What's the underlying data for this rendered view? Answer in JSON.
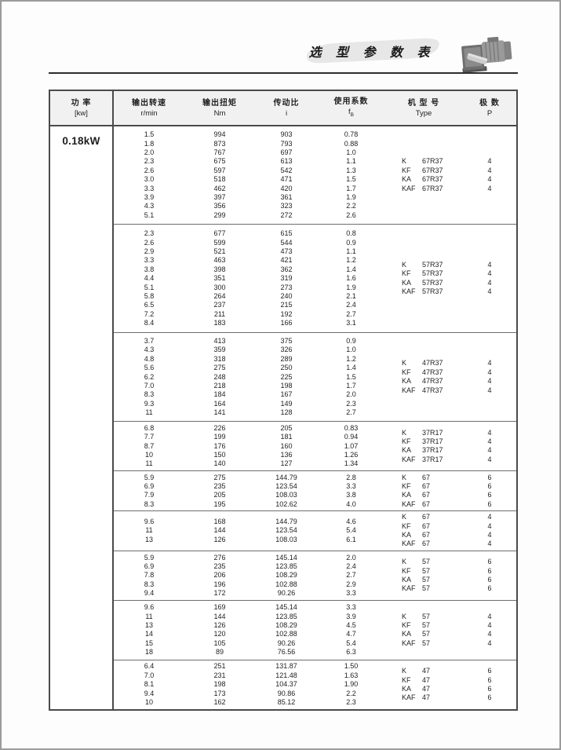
{
  "page": {
    "title": "选 型 参 数 表",
    "power_label": "0.18kW"
  },
  "header": {
    "power": {
      "zh": "功  率",
      "unit": "[kw]"
    },
    "speed": {
      "zh": "输出转速",
      "unit": "r/min"
    },
    "torque": {
      "zh": "输出扭矩",
      "unit": "Nm"
    },
    "ratio": {
      "zh": "传动比",
      "unit": "i"
    },
    "factor": {
      "zh": "使用系数",
      "unit_main": "f",
      "unit_sub": "B"
    },
    "type": {
      "zh": "机 型 号",
      "unit": "Type"
    },
    "poles": {
      "zh": "极  数",
      "unit": "P"
    }
  },
  "icons": {
    "gearmotor": "gearmotor-photo"
  },
  "colors": {
    "table_border": "#4a4a4a",
    "block_separator": "#6e6e6e",
    "header_bg": "#f1f1f1",
    "banner_bg": "#e7e7e7",
    "rule": "#2e2e2e"
  },
  "blocks": [
    {
      "rows": [
        [
          "1.5",
          "994",
          "903",
          "0.78"
        ],
        [
          "1.8",
          "873",
          "793",
          "0.88"
        ],
        [
          "2.0",
          "767",
          "697",
          "1.0"
        ],
        [
          "2.3",
          "675",
          "613",
          "1.1"
        ],
        [
          "2.6",
          "597",
          "542",
          "1.3"
        ],
        [
          "3.0",
          "518",
          "471",
          "1.5"
        ],
        [
          "3.3",
          "462",
          "420",
          "1.7"
        ],
        [
          "3.9",
          "397",
          "361",
          "1.9"
        ],
        [
          "4.3",
          "356",
          "323",
          "2.2"
        ],
        [
          "5.1",
          "299",
          "272",
          "2.6"
        ]
      ],
      "types": [
        {
          "series": "K",
          "code": "67R37"
        },
        {
          "series": "KF",
          "code": "67R37"
        },
        {
          "series": "KA",
          "code": "67R37"
        },
        {
          "series": "KAF",
          "code": "67R37"
        }
      ],
      "poles": "4"
    },
    {
      "rows": [
        [
          "2.3",
          "677",
          "615",
          "0.8"
        ],
        [
          "2.6",
          "599",
          "544",
          "0.9"
        ],
        [
          "2.9",
          "521",
          "473",
          "1.1"
        ],
        [
          "3.3",
          "463",
          "421",
          "1.2"
        ],
        [
          "3.8",
          "398",
          "362",
          "1.4"
        ],
        [
          "4.4",
          "351",
          "319",
          "1.6"
        ],
        [
          "5.1",
          "300",
          "273",
          "1.9"
        ],
        [
          "5.8",
          "264",
          "240",
          "2.1"
        ],
        [
          "6.5",
          "237",
          "215",
          "2.4"
        ],
        [
          "7.2",
          "211",
          "192",
          "2.7"
        ],
        [
          "8.4",
          "183",
          "166",
          "3.1"
        ]
      ],
      "types": [
        {
          "series": "K",
          "code": "57R37"
        },
        {
          "series": "KF",
          "code": "57R37"
        },
        {
          "series": "KA",
          "code": "57R37"
        },
        {
          "series": "KAF",
          "code": "57R37"
        }
      ],
      "poles": "4"
    },
    {
      "rows": [
        [
          "3.7",
          "413",
          "375",
          "0.9"
        ],
        [
          "4.3",
          "359",
          "326",
          "1.0"
        ],
        [
          "4.8",
          "318",
          "289",
          "1.2"
        ],
        [
          "5.6",
          "275",
          "250",
          "1.4"
        ],
        [
          "6.2",
          "248",
          "225",
          "1.5"
        ],
        [
          "7.0",
          "218",
          "198",
          "1.7"
        ],
        [
          "8.3",
          "184",
          "167",
          "2.0"
        ],
        [
          "9.3",
          "164",
          "149",
          "2.3"
        ],
        [
          "11",
          "141",
          "128",
          "2.7"
        ]
      ],
      "types": [
        {
          "series": "K",
          "code": "47R37"
        },
        {
          "series": "KF",
          "code": "47R37"
        },
        {
          "series": "KA",
          "code": "47R37"
        },
        {
          "series": "KAF",
          "code": "47R37"
        }
      ],
      "poles": "4"
    },
    {
      "rows": [
        [
          "6.8",
          "226",
          "205",
          "0.83"
        ],
        [
          "7.7",
          "199",
          "181",
          "0.94"
        ],
        [
          "8.7",
          "176",
          "160",
          "1.07"
        ],
        [
          "10",
          "150",
          "136",
          "1.26"
        ],
        [
          "11",
          "140",
          "127",
          "1.34"
        ]
      ],
      "types": [
        {
          "series": "K",
          "code": "37R17"
        },
        {
          "series": "KF",
          "code": "37R17"
        },
        {
          "series": "KA",
          "code": "37R17"
        },
        {
          "series": "KAF",
          "code": "37R17"
        }
      ],
      "poles": "4"
    },
    {
      "rows": [
        [
          "5.9",
          "275",
          "144.79",
          "2.8"
        ],
        [
          "6.9",
          "235",
          "123.54",
          "3.3"
        ],
        [
          "7.9",
          "205",
          "108.03",
          "3.8"
        ],
        [
          "8.3",
          "195",
          "102.62",
          "4.0"
        ]
      ],
      "types": [
        {
          "series": "K",
          "code": "67"
        },
        {
          "series": "KF",
          "code": "67"
        },
        {
          "series": "KA",
          "code": "67"
        },
        {
          "series": "KAF",
          "code": "67"
        }
      ],
      "poles": "6"
    },
    {
      "rows": [
        [
          "9.6",
          "168",
          "144.79",
          "4.6"
        ],
        [
          "11",
          "144",
          "123.54",
          "5.4"
        ],
        [
          "13",
          "126",
          "108.03",
          "6.1"
        ]
      ],
      "types": [
        {
          "series": "K",
          "code": "67"
        },
        {
          "series": "KF",
          "code": "67"
        },
        {
          "series": "KA",
          "code": "67"
        },
        {
          "series": "KAF",
          "code": "67"
        }
      ],
      "poles": "4"
    },
    {
      "rows": [
        [
          "5.9",
          "276",
          "145.14",
          "2.0"
        ],
        [
          "6.9",
          "235",
          "123.85",
          "2.4"
        ],
        [
          "7.8",
          "206",
          "108.29",
          "2.7"
        ],
        [
          "8.3",
          "196",
          "102.88",
          "2.9"
        ],
        [
          "9.4",
          "172",
          "90.26",
          "3.3"
        ]
      ],
      "types": [
        {
          "series": "K",
          "code": "57"
        },
        {
          "series": "KF",
          "code": "57"
        },
        {
          "series": "KA",
          "code": "57"
        },
        {
          "series": "KAF",
          "code": "57"
        }
      ],
      "poles": "6"
    },
    {
      "rows": [
        [
          "9.6",
          "169",
          "145.14",
          "3.3"
        ],
        [
          "11",
          "144",
          "123.85",
          "3.9"
        ],
        [
          "13",
          "126",
          "108.29",
          "4.5"
        ],
        [
          "14",
          "120",
          "102.88",
          "4.7"
        ],
        [
          "15",
          "105",
          "90.26",
          "5.4"
        ],
        [
          "18",
          "89",
          "76.56",
          "6.3"
        ]
      ],
      "types": [
        {
          "series": "K",
          "code": "57"
        },
        {
          "series": "KF",
          "code": "57"
        },
        {
          "series": "KA",
          "code": "57"
        },
        {
          "series": "KAF",
          "code": "57"
        }
      ],
      "poles": "4"
    },
    {
      "rows": [
        [
          "6.4",
          "251",
          "131.87",
          "1.50"
        ],
        [
          "7.0",
          "231",
          "121.48",
          "1.63"
        ],
        [
          "8.1",
          "198",
          "104.37",
          "1.90"
        ],
        [
          "9.4",
          "173",
          "90.86",
          "2.2"
        ],
        [
          "10",
          "162",
          "85.12",
          "2.3"
        ]
      ],
      "types": [
        {
          "series": "K",
          "code": "47"
        },
        {
          "series": "KF",
          "code": "47"
        },
        {
          "series": "KA",
          "code": "47"
        },
        {
          "series": "KAF",
          "code": "47"
        }
      ],
      "poles": "6"
    }
  ]
}
